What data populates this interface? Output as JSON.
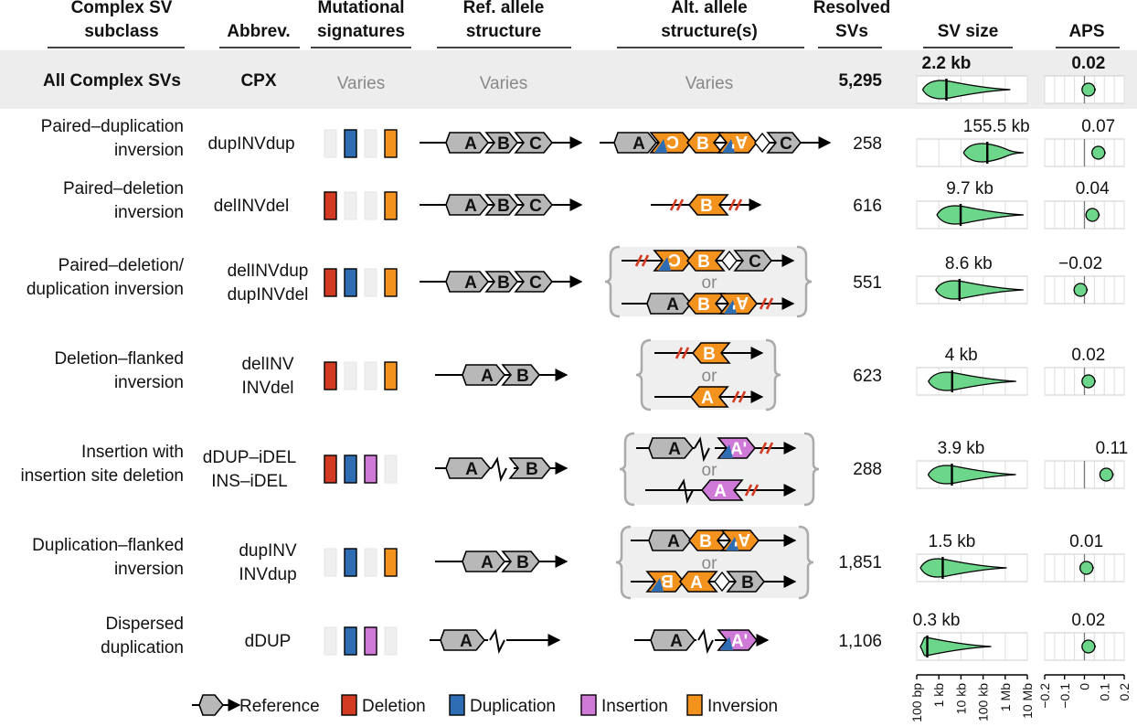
{
  "headers": [
    {
      "lines": [
        "Complex SV",
        "subclass"
      ]
    },
    {
      "lines": [
        "Abbrev."
      ]
    },
    {
      "lines": [
        "Mutational",
        "signatures"
      ]
    },
    {
      "lines": [
        "Ref. allele",
        "structure"
      ]
    },
    {
      "lines": [
        "Alt. allele",
        "structure(s)"
      ]
    },
    {
      "lines": [
        "Resolved",
        "SVs"
      ]
    },
    {
      "lines": [
        "SV size"
      ]
    },
    {
      "lines": [
        "APS"
      ]
    }
  ],
  "all_row": {
    "subclass": "All Complex SVs",
    "abbrev": "CPX",
    "signatures": "Varies",
    "ref": "Varies",
    "alt": "Varies",
    "resolved": "5,295",
    "size_label": "2.2 kb",
    "aps_label": "0.02",
    "size_median": 2200,
    "aps_value": 0.02
  },
  "rows": [
    {
      "subclass": [
        "Paired–duplication",
        "inversion"
      ],
      "abbrev": [
        "dupINVdup"
      ],
      "signatures": [
        false,
        true,
        false,
        true
      ],
      "resolved": "258",
      "size_label": "155.5 kb",
      "size_median": 155500,
      "aps_label": "0.07",
      "aps_value": 0.07
    },
    {
      "subclass": [
        "Paired–deletion",
        "inversion"
      ],
      "abbrev": [
        "delINVdel"
      ],
      "signatures": [
        true,
        false,
        false,
        true
      ],
      "resolved": "616",
      "size_label": "9.7 kb",
      "size_median": 9700,
      "aps_label": "0.04",
      "aps_value": 0.04
    },
    {
      "subclass": [
        "Paired–deletion/",
        "duplication inversion"
      ],
      "abbrev": [
        "delINVdup",
        "dupINVdel"
      ],
      "signatures": [
        true,
        true,
        false,
        true
      ],
      "resolved": "551",
      "size_label": "8.6 kb",
      "size_median": 8600,
      "aps_label": "−0.02",
      "aps_value": -0.02
    },
    {
      "subclass": [
        "Deletion–flanked",
        "inversion"
      ],
      "abbrev": [
        "delINV",
        "INVdel"
      ],
      "signatures": [
        true,
        false,
        false,
        true
      ],
      "resolved": "623",
      "size_label": "4 kb",
      "size_median": 4000,
      "aps_label": "0.02",
      "aps_value": 0.02
    },
    {
      "subclass": [
        "Insertion with",
        "insertion site deletion"
      ],
      "abbrev": [
        "dDUP–iDEL",
        "INS–iDEL"
      ],
      "signatures": [
        true,
        true,
        true,
        false
      ],
      "resolved": "288",
      "size_label": "3.9 kb",
      "size_median": 3900,
      "aps_label": "0.11",
      "aps_value": 0.11
    },
    {
      "subclass": [
        "Duplication–flanked",
        "inversion"
      ],
      "abbrev": [
        "dupINV",
        "INVdup"
      ],
      "signatures": [
        false,
        true,
        false,
        true
      ],
      "resolved": "1,851",
      "size_label": "1.5 kb",
      "size_median": 1500,
      "aps_label": "0.01",
      "aps_value": 0.01
    },
    {
      "subclass": [
        "Dispersed",
        "duplication"
      ],
      "abbrev": [
        "dDUP"
      ],
      "signatures": [
        false,
        true,
        true,
        false
      ],
      "resolved": "1,106",
      "size_label": "0.3 kb",
      "size_median": 300,
      "aps_label": "0.02",
      "aps_value": 0.02
    }
  ],
  "alt_or": "or",
  "segment_labels": {
    "a": "A",
    "b": "B",
    "c": "C",
    "a_prime": "A'"
  },
  "legend": [
    {
      "label": "Reference",
      "color": "#b8b8b8"
    },
    {
      "label": "Deletion",
      "color": "#d23b22"
    },
    {
      "label": "Duplication",
      "color": "#2e6db3"
    },
    {
      "label": "Insertion",
      "color": "#d07ad8"
    },
    {
      "label": "Inversion",
      "color": "#f4921e"
    }
  ],
  "size_axis": {
    "ticks": [
      "100 bp",
      "1 kb",
      "10 kb",
      "100 kb",
      "1 Mb",
      "10 Mb"
    ]
  },
  "aps_axis": {
    "ticks": [
      "−0.2",
      "−0.1",
      "0",
      "0.1",
      "0.2"
    ]
  },
  "colors": {
    "del": "#d23b22",
    "dup": "#2e6db3",
    "ins": "#d07ad8",
    "inv": "#f4921e",
    "ref": "#b8b8b8",
    "violin": "#6cd68a",
    "aps_dot": "#6cd68a"
  }
}
